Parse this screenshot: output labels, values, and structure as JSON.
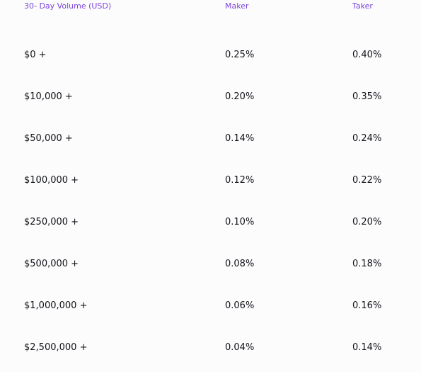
{
  "fee_table": {
    "headers": {
      "volume": "30- Day Volume (USD)",
      "maker": "Maker",
      "taker": "Taker"
    },
    "rows": [
      {
        "volume": "$0 +",
        "maker": "0.25%",
        "taker": "0.40%"
      },
      {
        "volume": "$10,000 +",
        "maker": "0.20%",
        "taker": "0.35%"
      },
      {
        "volume": "$50,000 +",
        "maker": "0.14%",
        "taker": "0.24%"
      },
      {
        "volume": "$100,000 +",
        "maker": "0.12%",
        "taker": "0.22%"
      },
      {
        "volume": "$250,000 +",
        "maker": "0.10%",
        "taker": "0.20%"
      },
      {
        "volume": "$500,000 +",
        "maker": "0.08%",
        "taker": "0.18%"
      },
      {
        "volume": "$1,000,000 +",
        "maker": "0.06%",
        "taker": "0.16%"
      },
      {
        "volume": "$2,500,000 +",
        "maker": "0.04%",
        "taker": "0.14%"
      }
    ]
  }
}
